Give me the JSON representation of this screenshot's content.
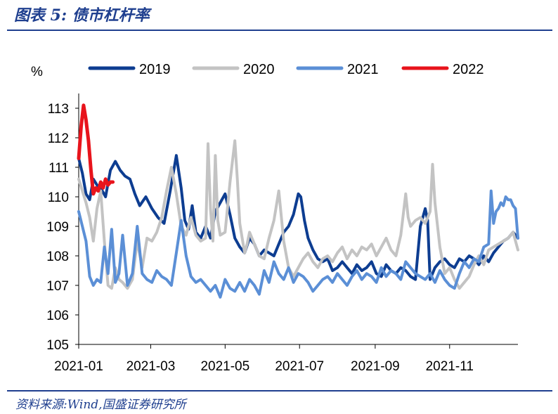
{
  "header": {
    "title": "图表 5:  债市杠杆率"
  },
  "footer": {
    "source": "资料来源:Wind,国盛证券研究所"
  },
  "chart_data": {
    "type": "line",
    "ylabel": "%",
    "ylim": [
      105,
      113.5
    ],
    "yticks": [
      105,
      106,
      107,
      108,
      109,
      110,
      111,
      112,
      113
    ],
    "xlabels": [
      "2021-01",
      "2021-03",
      "2021-05",
      "2021-07",
      "2021-09",
      "2021-11"
    ],
    "x_domain": [
      0,
      360
    ],
    "x_label_positions": [
      0,
      59,
      120,
      181,
      243,
      304
    ],
    "series": [
      {
        "name": "2019",
        "color": "#0d3d91",
        "width": 4,
        "x": [
          0,
          3,
          6,
          9,
          12,
          15,
          18,
          22,
          26,
          30,
          34,
          38,
          42,
          46,
          50,
          55,
          60,
          65,
          70,
          75,
          80,
          84,
          87,
          90,
          93,
          96,
          100,
          104,
          108,
          112,
          116,
          120,
          124,
          128,
          132,
          136,
          140,
          144,
          148,
          152,
          156,
          160,
          164,
          168,
          172,
          176,
          180,
          182,
          185,
          188,
          192,
          196,
          200,
          204,
          208,
          212,
          216,
          220,
          224,
          228,
          232,
          236,
          240,
          244,
          248,
          252,
          256,
          260,
          264,
          268,
          272,
          276,
          280,
          284,
          286,
          288,
          292,
          296,
          300,
          304,
          308,
          312,
          316,
          320,
          324,
          328,
          332,
          336,
          340,
          344,
          348,
          352,
          356,
          360
        ],
        "values": [
          111.3,
          110.8,
          110.1,
          109.9,
          110.6,
          110.4,
          110.3,
          110.0,
          110.9,
          111.2,
          110.9,
          110.7,
          110.6,
          110.1,
          109.7,
          110.0,
          109.6,
          109.3,
          109.1,
          110.2,
          111.4,
          110.3,
          109.2,
          108.9,
          109.7,
          108.8,
          108.6,
          109.0,
          108.6,
          109.5,
          109.8,
          110.1,
          109.4,
          108.6,
          108.3,
          108.1,
          108.6,
          108.4,
          108.0,
          108.2,
          108.1,
          108.0,
          108.4,
          108.8,
          109.0,
          109.4,
          110.1,
          110.0,
          109.2,
          108.6,
          108.2,
          107.9,
          107.8,
          107.9,
          107.5,
          107.6,
          107.8,
          107.6,
          107.4,
          107.7,
          107.5,
          107.6,
          107.8,
          107.4,
          107.3,
          107.7,
          107.5,
          107.4,
          107.6,
          107.5,
          107.3,
          107.2,
          109.0,
          109.6,
          109.2,
          107.2,
          107.6,
          107.8,
          107.9,
          107.7,
          107.6,
          107.9,
          107.8,
          108.0,
          107.9,
          107.7,
          108.0,
          107.8,
          108.1,
          108.3,
          108.5,
          108.6,
          108.8,
          108.6
        ]
      },
      {
        "name": "2020",
        "color": "#c3c3c3",
        "width": 4,
        "x": [
          0,
          3,
          6,
          9,
          12,
          15,
          18,
          21,
          24,
          27,
          30,
          33,
          36,
          40,
          44,
          48,
          52,
          56,
          60,
          64,
          68,
          72,
          76,
          80,
          84,
          88,
          92,
          96,
          100,
          104,
          106,
          108,
          110,
          112,
          114,
          116,
          120,
          124,
          128,
          130,
          132,
          134,
          136,
          138,
          140,
          144,
          148,
          152,
          156,
          160,
          164,
          168,
          172,
          176,
          180,
          184,
          188,
          192,
          196,
          200,
          204,
          208,
          212,
          216,
          220,
          224,
          228,
          232,
          236,
          240,
          244,
          248,
          252,
          256,
          260,
          264,
          268,
          270,
          272,
          276,
          280,
          284,
          288,
          290,
          292,
          296,
          300,
          304,
          308,
          312,
          316,
          320,
          324,
          328,
          332,
          336,
          340,
          344,
          348,
          352,
          356,
          360
        ],
        "values": [
          110.6,
          110.2,
          109.8,
          109.3,
          108.5,
          109.6,
          110.2,
          108.5,
          107.0,
          106.9,
          107.6,
          107.2,
          107.1,
          106.9,
          107.2,
          108.5,
          107.6,
          108.6,
          108.5,
          108.8,
          109.3,
          110.2,
          111.0,
          110.1,
          109.0,
          108.7,
          109.3,
          108.7,
          108.5,
          108.6,
          111.8,
          109.6,
          108.5,
          111.4,
          109.2,
          108.7,
          108.8,
          110.5,
          111.9,
          110.6,
          109.1,
          108.6,
          108.1,
          108.4,
          108.8,
          108.4,
          108.0,
          107.9,
          108.6,
          109.2,
          110.2,
          108.5,
          107.6,
          107.3,
          107.6,
          107.9,
          108.1,
          107.8,
          107.6,
          107.9,
          108.0,
          107.8,
          108.1,
          108.3,
          107.9,
          108.2,
          108.0,
          108.3,
          108.2,
          108.4,
          108.0,
          108.3,
          108.6,
          108.2,
          108.0,
          108.7,
          110.1,
          109.3,
          109.0,
          109.2,
          109.3,
          109.1,
          109.5,
          111.1,
          109.8,
          108.3,
          107.4,
          107.6,
          107.2,
          106.9,
          107.1,
          107.3,
          107.7,
          108.0,
          107.7,
          108.2,
          108.3,
          108.4,
          108.5,
          108.6,
          108.8,
          108.2
        ]
      },
      {
        "name": "2021",
        "color": "#5b8fd6",
        "width": 4,
        "x": [
          0,
          3,
          6,
          9,
          12,
          15,
          18,
          21,
          24,
          27,
          30,
          33,
          36,
          40,
          44,
          48,
          52,
          56,
          60,
          64,
          68,
          72,
          76,
          80,
          84,
          88,
          92,
          96,
          100,
          104,
          108,
          112,
          116,
          120,
          124,
          128,
          132,
          136,
          140,
          144,
          148,
          152,
          156,
          160,
          164,
          168,
          172,
          176,
          180,
          184,
          188,
          192,
          196,
          200,
          204,
          208,
          212,
          216,
          220,
          224,
          228,
          232,
          236,
          240,
          244,
          248,
          252,
          256,
          260,
          264,
          268,
          272,
          276,
          280,
          284,
          288,
          292,
          296,
          300,
          304,
          308,
          312,
          316,
          320,
          324,
          328,
          332,
          336,
          338,
          340,
          342,
          344,
          346,
          348,
          350,
          352,
          354,
          356,
          358,
          360
        ],
        "values": [
          109.5,
          109.0,
          108.5,
          107.3,
          107.0,
          107.2,
          107.1,
          108.3,
          107.4,
          108.9,
          107.1,
          107.4,
          108.7,
          107.0,
          107.4,
          109.0,
          107.4,
          107.2,
          107.1,
          107.5,
          107.3,
          107.2,
          107.0,
          108.1,
          109.2,
          108.0,
          107.3,
          107.1,
          107.2,
          107.0,
          106.8,
          107.0,
          106.6,
          107.2,
          106.9,
          106.8,
          107.1,
          106.8,
          107.2,
          107.0,
          106.7,
          107.5,
          107.1,
          107.8,
          107.4,
          107.2,
          107.6,
          107.1,
          107.4,
          107.3,
          107.1,
          106.8,
          107.0,
          107.2,
          107.3,
          107.1,
          107.4,
          107.2,
          107.0,
          107.3,
          107.5,
          107.2,
          107.4,
          107.3,
          107.1,
          107.6,
          107.3,
          107.5,
          107.4,
          107.2,
          107.8,
          107.6,
          107.4,
          107.3,
          107.2,
          107.4,
          107.1,
          107.5,
          107.2,
          107.0,
          106.9,
          107.4,
          107.8,
          107.6,
          107.9,
          107.8,
          108.3,
          108.4,
          110.2,
          109.1,
          109.5,
          109.6,
          109.8,
          109.7,
          110.0,
          109.9,
          109.9,
          109.7,
          109.6,
          108.6
        ]
      },
      {
        "name": "2022",
        "color": "#e8141c",
        "width": 5,
        "x": [
          0,
          2,
          4,
          6,
          8,
          10,
          12,
          14,
          16,
          18,
          20,
          22,
          24,
          26,
          28
        ],
        "values": [
          111.3,
          112.4,
          113.1,
          112.6,
          111.9,
          110.9,
          110.1,
          110.3,
          110.2,
          110.5,
          110.3,
          110.6,
          110.4,
          110.5,
          110.5
        ]
      }
    ]
  }
}
